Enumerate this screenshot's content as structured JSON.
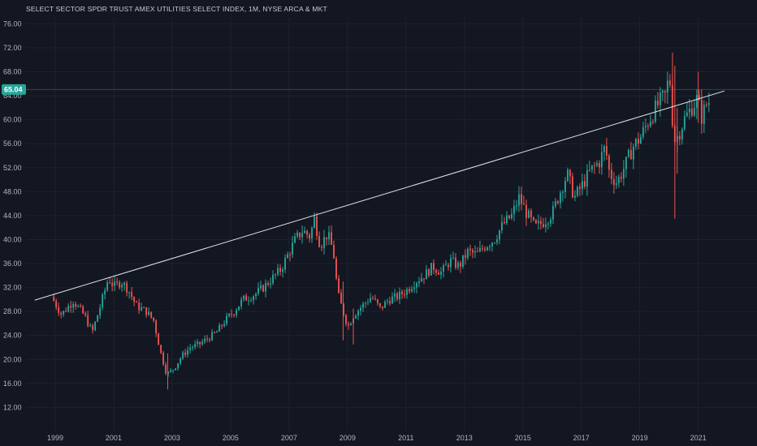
{
  "header": {
    "title": "SELECT SECTOR SPDR TRUST AMEX UTILITIES SELECT INDEX, 1M, NYSE ARCA & MKT"
  },
  "last_price": {
    "label": "65.04",
    "value": 65.04,
    "color": "#26a69a"
  },
  "colors": {
    "background": "#131722",
    "up": "#26a69a",
    "down": "#ef5350",
    "trendline": "#e0e3eb"
  },
  "chart_data": {
    "type": "candlestick",
    "title": "SELECT SECTOR SPDR TRUST AMEX UTILITIES SELECT INDEX, 1M, NYSE ARCA & MKT",
    "interval": "1M",
    "xlim": [
      1998.0,
      2022.4
    ],
    "ylim": [
      8.0,
      77.0
    ],
    "y_ticks": [
      "12.00",
      "16.00",
      "20.00",
      "24.00",
      "28.00",
      "32.00",
      "36.00",
      "40.00",
      "44.00",
      "48.00",
      "52.00",
      "56.00",
      "60.00",
      "64.00",
      "68.00",
      "72.00",
      "76.00"
    ],
    "x_ticks": [
      "1999",
      "2001",
      "2003",
      "2005",
      "2007",
      "2009",
      "2011",
      "2013",
      "2015",
      "2017",
      "2019",
      "2021"
    ],
    "grid": true,
    "trendline": {
      "from": {
        "x": 1998.3,
        "y": 29.9
      },
      "to": {
        "x": 2021.9,
        "y": 64.8
      }
    },
    "price_path": [
      [
        1998.95,
        30.5
      ],
      [
        1999.3,
        27.5
      ],
      [
        1999.7,
        29.8
      ],
      [
        2000.1,
        27.2
      ],
      [
        2000.35,
        24.5
      ],
      [
        2000.6,
        28.5
      ],
      [
        2000.9,
        33.5
      ],
      [
        2001.1,
        32.2
      ],
      [
        2001.35,
        33.0
      ],
      [
        2001.6,
        31.5
      ],
      [
        2001.85,
        29.0
      ],
      [
        2002.2,
        28.0
      ],
      [
        2002.45,
        26.5
      ],
      [
        2002.7,
        21.0
      ],
      [
        2002.9,
        17.5
      ],
      [
        2003.15,
        18.5
      ],
      [
        2003.4,
        20.5
      ],
      [
        2003.7,
        22.0
      ],
      [
        2004.0,
        22.5
      ],
      [
        2004.3,
        23.5
      ],
      [
        2004.6,
        24.5
      ],
      [
        2004.9,
        26.5
      ],
      [
        2005.2,
        28.0
      ],
      [
        2005.5,
        30.0
      ],
      [
        2005.75,
        30.5
      ],
      [
        2005.95,
        31.0
      ],
      [
        2006.2,
        32.0
      ],
      [
        2006.5,
        33.5
      ],
      [
        2006.8,
        35.0
      ],
      [
        2007.0,
        37.0
      ],
      [
        2007.3,
        40.0
      ],
      [
        2007.55,
        41.5
      ],
      [
        2007.8,
        40.5
      ],
      [
        2007.95,
        43.5
      ],
      [
        2008.15,
        39.0
      ],
      [
        2008.4,
        41.0
      ],
      [
        2008.6,
        38.0
      ],
      [
        2008.75,
        31.0
      ],
      [
        2008.9,
        28.5
      ],
      [
        2009.1,
        25.5
      ],
      [
        2009.3,
        27.5
      ],
      [
        2009.6,
        29.0
      ],
      [
        2009.9,
        30.5
      ],
      [
        2010.2,
        28.5
      ],
      [
        2010.5,
        30.0
      ],
      [
        2010.8,
        30.5
      ],
      [
        2011.1,
        31.5
      ],
      [
        2011.4,
        33.0
      ],
      [
        2011.7,
        34.0
      ],
      [
        2012.0,
        35.5
      ],
      [
        2012.3,
        34.5
      ],
      [
        2012.6,
        36.5
      ],
      [
        2012.9,
        35.5
      ],
      [
        2013.2,
        38.0
      ],
      [
        2013.5,
        37.5
      ],
      [
        2013.8,
        39.0
      ],
      [
        2014.1,
        40.0
      ],
      [
        2014.4,
        42.5
      ],
      [
        2014.7,
        44.0
      ],
      [
        2014.95,
        47.0
      ],
      [
        2015.2,
        44.5
      ],
      [
        2015.5,
        42.0
      ],
      [
        2015.8,
        43.0
      ],
      [
        2016.1,
        44.5
      ],
      [
        2016.4,
        48.5
      ],
      [
        2016.6,
        51.0
      ],
      [
        2016.85,
        47.0
      ],
      [
        2017.1,
        49.0
      ],
      [
        2017.4,
        51.5
      ],
      [
        2017.7,
        53.0
      ],
      [
        2017.9,
        55.5
      ],
      [
        2018.05,
        51.0
      ],
      [
        2018.3,
        49.5
      ],
      [
        2018.6,
        52.5
      ],
      [
        2018.85,
        55.5
      ],
      [
        2019.1,
        57.0
      ],
      [
        2019.4,
        60.0
      ],
      [
        2019.7,
        62.5
      ],
      [
        2019.95,
        64.0
      ],
      [
        2020.1,
        67.5
      ],
      [
        2020.25,
        56.5
      ],
      [
        2020.4,
        57.5
      ],
      [
        2020.6,
        60.0
      ],
      [
        2020.85,
        62.0
      ],
      [
        2021.05,
        63.5
      ],
      [
        2021.2,
        60.5
      ],
      [
        2021.4,
        63.0
      ]
    ],
    "wick_highlights": [
      {
        "x": 2020.12,
        "high": 71.2,
        "low": 61.0
      },
      {
        "x": 2020.2,
        "high": 69.0,
        "low": 43.5
      },
      {
        "x": 2020.28,
        "high": 62.0,
        "low": 51.0
      },
      {
        "x": 2021.0,
        "high": 68.0,
        "low": 59.5
      },
      {
        "x": 2008.85,
        "high": 33.0,
        "low": 23.2
      },
      {
        "x": 2009.2,
        "high": 28.5,
        "low": 22.5
      },
      {
        "x": 2002.85,
        "high": 21.0,
        "low": 15.0
      }
    ]
  }
}
